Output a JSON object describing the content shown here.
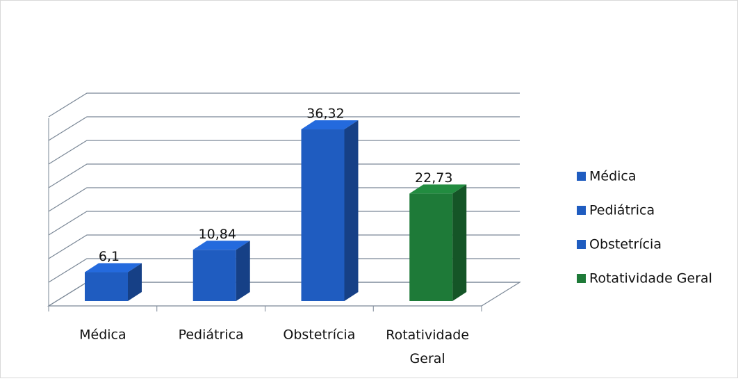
{
  "chart_data": {
    "type": "bar3d",
    "categories": [
      "Médica",
      "Pediátrica",
      "Obstetrícia",
      "Rotatividade Geral"
    ],
    "values": [
      6.1,
      10.84,
      36.32,
      22.73
    ],
    "value_labels": [
      "6,1",
      "10,84",
      "36,32",
      "22,73"
    ],
    "colors": [
      "#1f5cc0",
      "#1f5cc0",
      "#1f5cc0",
      "#1e7a38"
    ],
    "ylim": [
      0,
      40
    ],
    "yticks": [
      0,
      5,
      10,
      15,
      20,
      25,
      30,
      35,
      40
    ],
    "grid": true,
    "legend": "right"
  }
}
